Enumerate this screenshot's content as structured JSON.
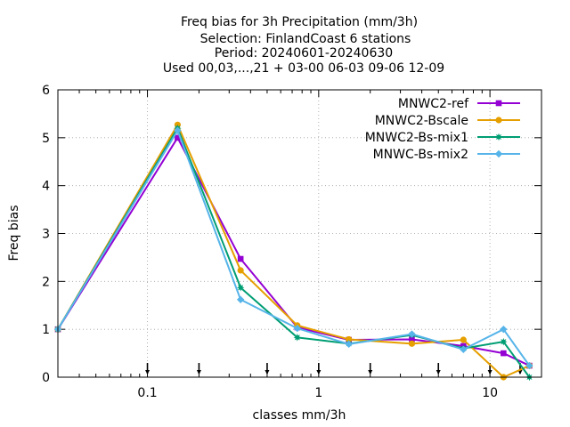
{
  "chart_data": {
    "type": "line",
    "title_lines": [
      "Freq bias  for 3h Precipitation (mm/3h)",
      "Selection: FinlandCoast      6 stations",
      "Period: 20240601-20240630",
      "Used 00,03,...,21 + 03-00 06-03 09-06 12-09"
    ],
    "xlabel": "classes mm/3h",
    "ylabel": "Freq bias",
    "x_scale": "log",
    "xlim": [
      0.03,
      20
    ],
    "ylim": [
      0,
      6
    ],
    "x_ticks": [
      0.1,
      1,
      10
    ],
    "x_tick_labels": [
      "0.1",
      "1",
      "10"
    ],
    "y_ticks": [
      0,
      1,
      2,
      3,
      4,
      5,
      6
    ],
    "y_tick_labels": [
      "0",
      "1",
      "2",
      "3",
      "4",
      "5",
      "6"
    ],
    "class_markers": [
      0.1,
      0.2,
      0.5,
      1,
      2,
      5,
      10,
      15
    ],
    "grid": true,
    "legend_position": "top-right",
    "x": [
      0.03,
      0.15,
      0.35,
      0.75,
      1.5,
      3.5,
      7,
      12,
      17
    ],
    "series": [
      {
        "name": "MNWC2-ref",
        "color": "#9400d3",
        "marker": "square",
        "values": [
          1.0,
          5.0,
          2.47,
          1.04,
          0.78,
          0.79,
          0.65,
          0.5,
          0.24
        ]
      },
      {
        "name": "MNWC2-Bscale",
        "color": "#e69f00",
        "marker": "circle",
        "values": [
          1.0,
          5.27,
          2.23,
          1.08,
          0.79,
          0.7,
          0.78,
          0.0,
          0.24
        ]
      },
      {
        "name": "MNWC2-Bs-mix1",
        "color": "#009e73",
        "marker": "star",
        "values": [
          1.0,
          5.2,
          1.87,
          0.83,
          0.7,
          0.88,
          0.6,
          0.74,
          0.0
        ]
      },
      {
        "name": "MNWC-Bs-mix2",
        "color": "#56b4e9",
        "marker": "diamond",
        "values": [
          1.0,
          5.15,
          1.62,
          1.02,
          0.69,
          0.9,
          0.58,
          1.0,
          0.24
        ]
      }
    ]
  }
}
